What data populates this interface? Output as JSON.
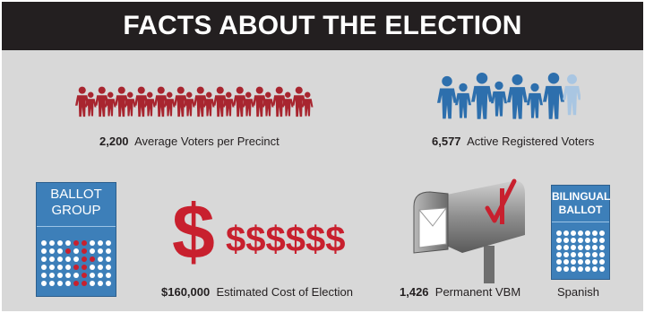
{
  "header": {
    "title": "FACTS ABOUT THE ELECTION"
  },
  "facts": {
    "precinct": {
      "value": "2,200",
      "label": "Average Voters per Precinct"
    },
    "registered": {
      "value": "6,577",
      "label": "Active Registered Voters"
    },
    "cost": {
      "value": "$160,000",
      "label": "Estimated Cost of Election"
    },
    "vbm": {
      "value": "1,426",
      "label": "Permanent VBM"
    },
    "language": {
      "label": "Spanish"
    }
  },
  "ballot_group": {
    "line1": "BALLOT",
    "line2": "GROUP"
  },
  "bilingual_ballot": {
    "line1": "BILINGUAL",
    "line2": "BALLOT"
  },
  "money": {
    "big_symbol": "$",
    "small_symbols": "$$$$$$"
  },
  "colors": {
    "header_bg": "#231f20",
    "panel_bg": "#d8d8d8",
    "voter_red": "#a8252f",
    "voter_blue": "#2d6fad",
    "ballot_blue": "#3d7fb9",
    "accent_red": "#c8202e"
  }
}
